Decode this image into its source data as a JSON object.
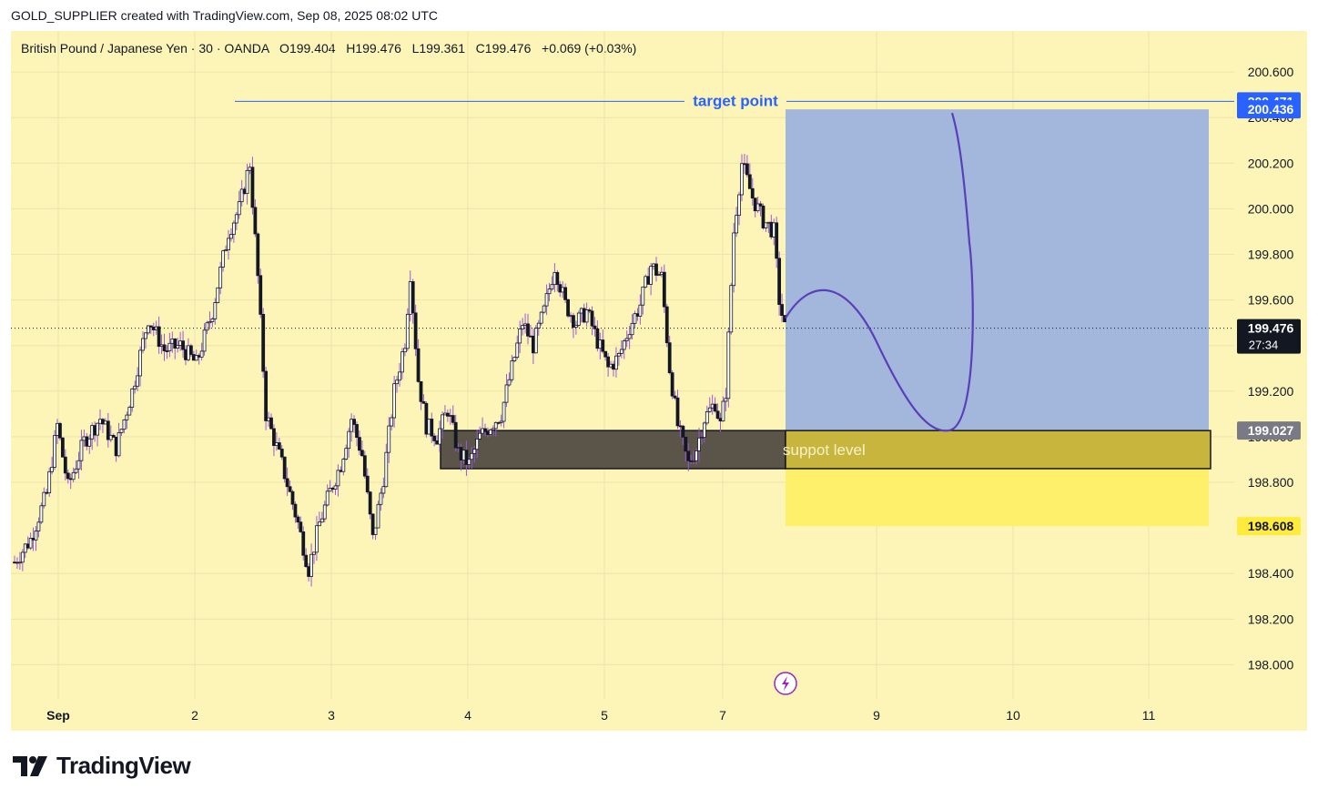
{
  "header": {
    "published_by": "GOLD_SUPPLIER created with TradingView.com, Sep 08, 2025 08:02 UTC",
    "symbol_line": "British Pound / Japanese Yen · 30 · OANDA   O199.404   H199.476   L199.361   C199.476   +0.069 (+0.03%)"
  },
  "chart_data": {
    "type": "candlestick",
    "symbol": "British Pound / Japanese Yen",
    "interval": "30",
    "source": "OANDA",
    "ohlc": {
      "open": 199.404,
      "high": 199.476,
      "low": 199.361,
      "close": 199.476,
      "change": "+0.069",
      "change_pct": "(+0.03%)"
    },
    "y_ticks": [
      "200.600",
      "200.400",
      "200.200",
      "200.000",
      "199.800",
      "199.600",
      "199.400",
      "199.200",
      "199.000",
      "198.800",
      "198.400",
      "198.200",
      "198.000"
    ],
    "ylim": [
      197.85,
      200.78
    ],
    "x_ticks": [
      "Sep",
      "2",
      "3",
      "4",
      "5",
      "7",
      "9",
      "10",
      "11"
    ],
    "price_path": [
      [
        0,
        198.45
      ],
      [
        3,
        198.55
      ],
      [
        6,
        198.75
      ],
      [
        8,
        199.05
      ],
      [
        10,
        198.78
      ],
      [
        13,
        198.98
      ],
      [
        16,
        199.08
      ],
      [
        19,
        198.95
      ],
      [
        22,
        199.2
      ],
      [
        25,
        199.52
      ],
      [
        28,
        199.38
      ],
      [
        31,
        199.4
      ],
      [
        34,
        199.32
      ],
      [
        37,
        199.55
      ],
      [
        40,
        199.9
      ],
      [
        42,
        200.0
      ],
      [
        44,
        200.2
      ],
      [
        45.5,
        199.7
      ],
      [
        47,
        199.1
      ],
      [
        50,
        198.88
      ],
      [
        53,
        198.62
      ],
      [
        55,
        198.42
      ],
      [
        57,
        198.62
      ],
      [
        59,
        198.76
      ],
      [
        61,
        198.88
      ],
      [
        63,
        199.08
      ],
      [
        65,
        198.92
      ],
      [
        67,
        198.55
      ],
      [
        69,
        198.82
      ],
      [
        71,
        199.2
      ],
      [
        73,
        199.42
      ],
      [
        74,
        199.72
      ],
      [
        75.5,
        199.25
      ],
      [
        77,
        199.05
      ],
      [
        79,
        199.0
      ],
      [
        81,
        199.12
      ],
      [
        83,
        198.93
      ],
      [
        85,
        198.88
      ],
      [
        87,
        199.0
      ],
      [
        89,
        199.05
      ],
      [
        91,
        199.1
      ],
      [
        93,
        199.3
      ],
      [
        95,
        199.5
      ],
      [
        97,
        199.4
      ],
      [
        99,
        199.55
      ],
      [
        101,
        199.75
      ],
      [
        103,
        199.58
      ],
      [
        105,
        199.5
      ],
      [
        107,
        199.55
      ],
      [
        109,
        199.42
      ],
      [
        111,
        199.3
      ],
      [
        113,
        199.35
      ],
      [
        115,
        199.48
      ],
      [
        117,
        199.58
      ],
      [
        119,
        199.75
      ],
      [
        121,
        199.7
      ],
      [
        122.5,
        199.3
      ],
      [
        124,
        199.05
      ],
      [
        126,
        198.88
      ],
      [
        127.5,
        198.95
      ],
      [
        129,
        199.08
      ],
      [
        131,
        199.15
      ],
      [
        132,
        199.05
      ],
      [
        133,
        199.2
      ],
      [
        134.5,
        199.9
      ],
      [
        136,
        200.2
      ],
      [
        138,
        200.05
      ],
      [
        140,
        199.95
      ],
      [
        142,
        199.9
      ],
      [
        143,
        199.6
      ],
      [
        144,
        199.476
      ]
    ],
    "x_range": [
      0,
      144
    ],
    "long_position": {
      "target": "200.436",
      "entry": "199.027",
      "stop": "198.608"
    },
    "annotations": {
      "target_label": "target point",
      "target_line": "200.471",
      "support_label": "suppot level"
    },
    "last_price": "199.476",
    "countdown": "27:34",
    "grid": true
  },
  "colors": {
    "background": "#fdf5b7",
    "candle": "#131722",
    "wick": "#9b59d6",
    "target_zone": "#a3b6db",
    "stop_zone": "#fff06b",
    "support_box": "#5a5548",
    "support_box_over_zone": "#c8b53e",
    "path": "#5a3fb8",
    "target_line": "#2962ff"
  },
  "footer": {
    "brand": "TradingView"
  }
}
